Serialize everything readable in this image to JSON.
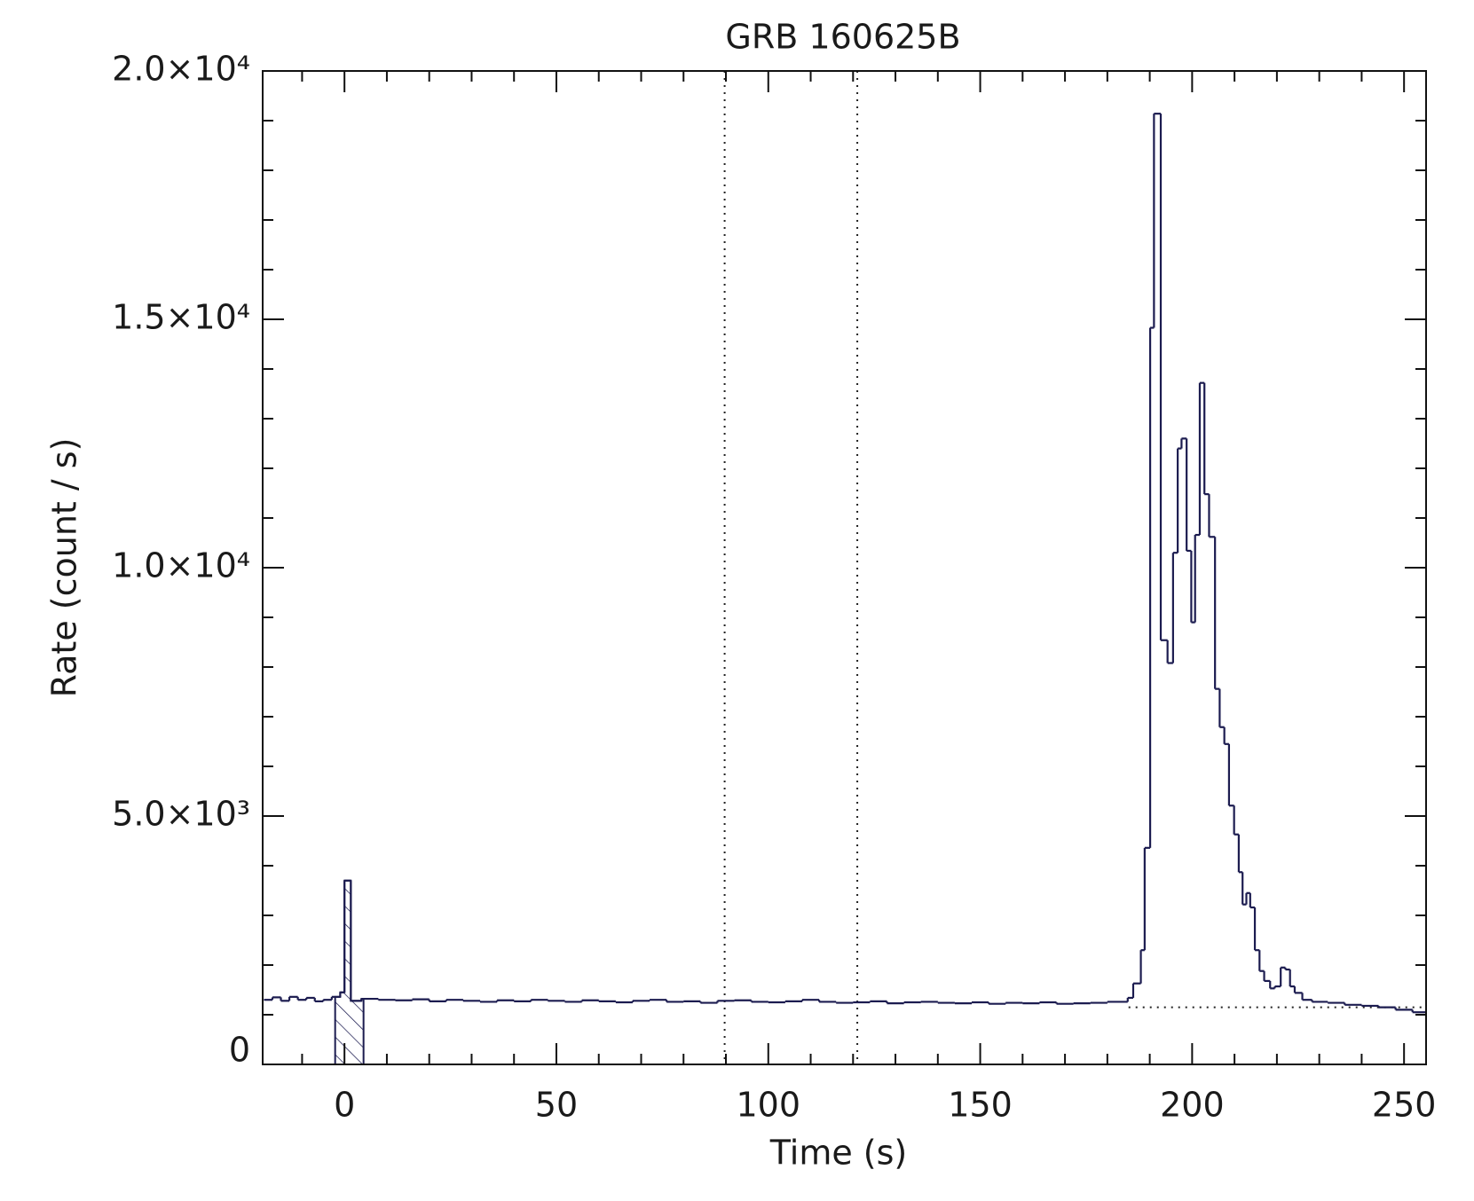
{
  "chart_data": {
    "type": "histogram",
    "title": "GRB 160625B",
    "xlabel": "Time (s)",
    "ylabel": "Rate (count / s)",
    "color": "#1c1c50",
    "xlim": [
      -19.3,
      255.2
    ],
    "ylim": [
      0,
      20000
    ],
    "xticks": [
      0,
      50,
      100,
      150,
      200,
      250
    ],
    "xminorticks": [
      -10,
      10,
      20,
      30,
      40,
      60,
      70,
      80,
      90,
      110,
      120,
      130,
      140,
      160,
      170,
      180,
      190,
      210,
      220,
      230,
      240
    ],
    "yticks": [
      0,
      {
        "value": 5000,
        "label": "5.0×10³"
      },
      {
        "value": 10000,
        "label": "1.0×10⁴"
      },
      {
        "value": 15000,
        "label": "1.5×10⁴"
      },
      {
        "value": 20000,
        "label": "2.0×10⁴"
      }
    ],
    "yminorticks": [
      1000,
      2000,
      3000,
      4000,
      6000,
      7000,
      8000,
      9000,
      11000,
      12000,
      13000,
      14000,
      16000,
      17000,
      18000,
      19000
    ],
    "vlines": [
      89.7,
      121
    ],
    "hline": {
      "y": 1150,
      "xrange": [
        185,
        255
      ]
    },
    "hatched_interval": [
      -2.2,
      4.5
    ],
    "bins": [
      -19,
      -17,
      -15,
      -13,
      -11,
      -9,
      -7,
      -5,
      -3,
      -1,
      0,
      1.5,
      4,
      8,
      12,
      16,
      20,
      24,
      28,
      32,
      36,
      40,
      44,
      48,
      52,
      56,
      60,
      64,
      68,
      72,
      76,
      80,
      84,
      88,
      92,
      96,
      100,
      104,
      108,
      112,
      116,
      120,
      124,
      128,
      132,
      136,
      140,
      144,
      148,
      152,
      156,
      160,
      164,
      168,
      172,
      176,
      180,
      184.8,
      186.1,
      187.9,
      188.8,
      190.1,
      191.0,
      192.6,
      194.2,
      195.5,
      196.6,
      197.5,
      198.7,
      199.8,
      200.7,
      201.8,
      202.9,
      204.0,
      205.4,
      206.5,
      207.6,
      208.7,
      209.9,
      211.0,
      211.9,
      212.8,
      213.7,
      214.8,
      215.9,
      217.0,
      218.4,
      219.5,
      220.9,
      222.0,
      223.1,
      224.2,
      226.0,
      228.3,
      232,
      236,
      240,
      244,
      248,
      252,
      255
    ],
    "values": [
      1300,
      1350,
      1280,
      1360,
      1300,
      1340,
      1270,
      1300,
      1360,
      1450,
      3700,
      1280,
      1320,
      1300,
      1290,
      1310,
      1270,
      1300,
      1280,
      1260,
      1290,
      1270,
      1300,
      1280,
      1260,
      1290,
      1270,
      1250,
      1280,
      1300,
      1260,
      1270,
      1240,
      1280,
      1290,
      1260,
      1250,
      1270,
      1300,
      1260,
      1240,
      1250,
      1270,
      1230,
      1250,
      1260,
      1240,
      1230,
      1250,
      1220,
      1240,
      1230,
      1250,
      1220,
      1230,
      1240,
      1260,
      1340,
      1630,
      2300,
      4360,
      14830,
      19140,
      8540,
      8080,
      10300,
      12400,
      12600,
      10340,
      8900,
      10660,
      13720,
      11480,
      10620,
      7560,
      6790,
      6450,
      5210,
      4630,
      3870,
      3220,
      3450,
      3160,
      2300,
      1880,
      1680,
      1530,
      1570,
      1950,
      1910,
      1570,
      1440,
      1300,
      1260,
      1240,
      1200,
      1180,
      1150,
      1100,
      1050
    ]
  }
}
